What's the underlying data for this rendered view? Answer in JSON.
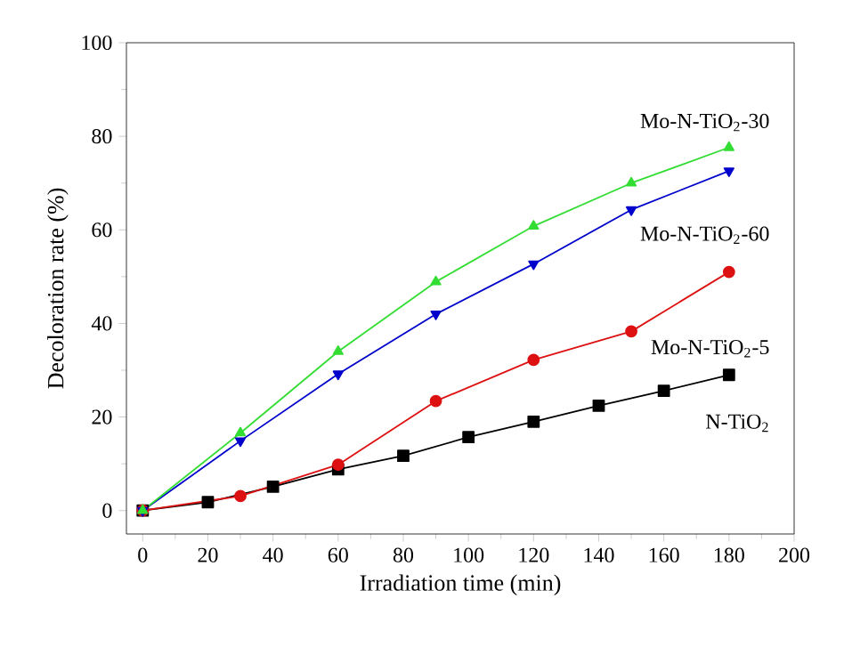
{
  "chart_data": {
    "type": "line",
    "xlabel": "Irradiation time (min)",
    "ylabel": "Decoloration rate (%)",
    "xlim": [
      -5,
      200
    ],
    "ylim": [
      -5,
      100
    ],
    "xticks": [
      0,
      20,
      40,
      60,
      80,
      100,
      120,
      140,
      160,
      180,
      200
    ],
    "yticks": [
      0,
      20,
      40,
      60,
      80,
      100
    ],
    "grid": false,
    "line_style": "solid",
    "series": [
      {
        "name": "Mo-N-TiO$_{2}$-30",
        "color": "#33dd33",
        "marker": "triangle",
        "x": [
          0,
          30,
          60,
          90,
          120,
          150,
          180
        ],
        "values": [
          0,
          16.6,
          34,
          48.9,
          60.8,
          70,
          77.6
        ]
      },
      {
        "name": "Mo-N-TiO$_{2}$-60",
        "color": "#0000cc",
        "marker": "triangle-down",
        "x": [
          0,
          30,
          60,
          90,
          120,
          150,
          180
        ],
        "values": [
          0,
          14.9,
          29.2,
          42,
          52.7,
          64.3,
          72.6
        ]
      },
      {
        "name": "Mo-N-TiO$_{2}$-5",
        "color": "#dd1111",
        "marker": "circle",
        "x": [
          0,
          30,
          60,
          90,
          120,
          150,
          180
        ],
        "values": [
          0,
          3.1,
          9.8,
          23.4,
          32.2,
          38.3,
          51
        ]
      },
      {
        "name": "N-TiO$_{2}$",
        "color": "#000000",
        "marker": "square",
        "x": [
          0,
          20,
          40,
          60,
          80,
          100,
          120,
          140,
          160,
          180
        ],
        "values": [
          0,
          1.8,
          5.1,
          8.8,
          11.7,
          15.7,
          19,
          22.4,
          25.6,
          29
        ]
      }
    ]
  }
}
